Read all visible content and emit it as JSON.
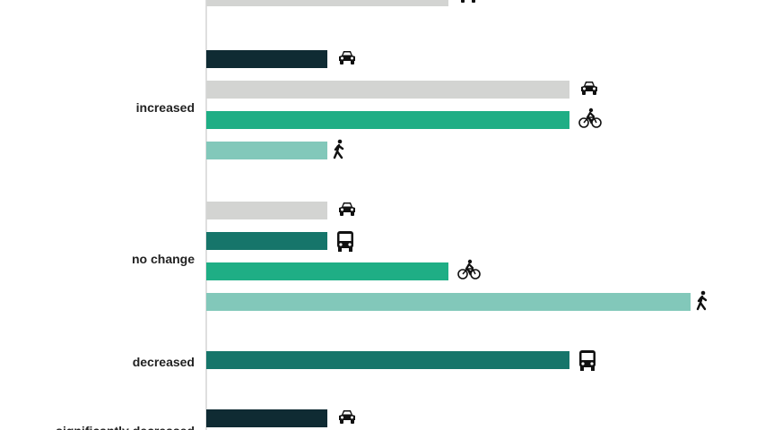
{
  "chart_data": {
    "type": "bar",
    "orientation": "horizontal",
    "title": "",
    "xlabel": "",
    "ylabel": "",
    "grid": false,
    "xlim": [
      0,
      4
    ],
    "series_colors": {
      "car-dark": "#0f2b33",
      "car-light": "#d3d4d2",
      "bus": "#16756a",
      "bicycle": "#1fae85",
      "pedestrian": "#82c8ba"
    },
    "groups": [
      {
        "category": "",
        "bars": [
          {
            "mode": "car-light",
            "icon": "car-icon",
            "value": 2
          }
        ]
      },
      {
        "category": "increased",
        "bars": [
          {
            "mode": "car-dark",
            "icon": "car-icon",
            "value": 1
          },
          {
            "mode": "car-light",
            "icon": "car-icon",
            "value": 3
          },
          {
            "mode": "bicycle",
            "icon": "bicycle-icon",
            "value": 3
          },
          {
            "mode": "pedestrian",
            "icon": "pedestrian-icon",
            "value": 1
          }
        ]
      },
      {
        "category": "no change",
        "bars": [
          {
            "mode": "car-light",
            "icon": "car-icon",
            "value": 1
          },
          {
            "mode": "bus",
            "icon": "bus-icon",
            "value": 1
          },
          {
            "mode": "bicycle",
            "icon": "bicycle-icon",
            "value": 2
          },
          {
            "mode": "pedestrian",
            "icon": "pedestrian-icon",
            "value": 4
          }
        ]
      },
      {
        "category": "decreased",
        "bars": [
          {
            "mode": "bus",
            "icon": "bus-icon",
            "value": 3
          }
        ]
      },
      {
        "category": "significantly decreased",
        "bars": [
          {
            "mode": "car-dark",
            "icon": "car-icon",
            "value": 1
          }
        ]
      }
    ]
  }
}
